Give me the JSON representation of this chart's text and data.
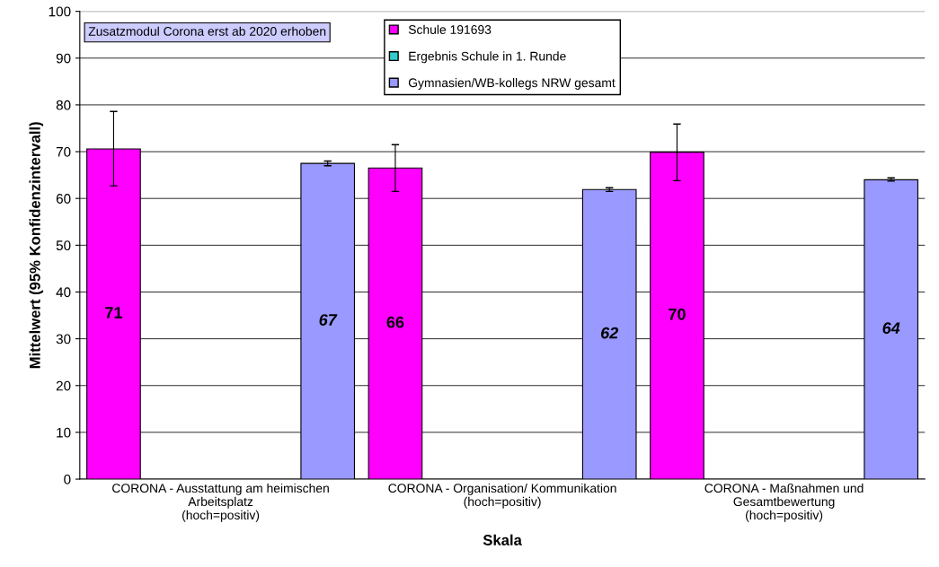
{
  "chart_data": {
    "type": "bar",
    "categories": [
      "CORONA - Ausstattung am heimischen\nArbeitsplatz\n(hoch=positiv)",
      "CORONA - Organisation/ Kommunikation\n(hoch=positiv)",
      "CORONA - Maßnahmen und\nGesamtbewertung\n(hoch=positiv)"
    ],
    "series": [
      {
        "name": "Schule 191693",
        "color": "#ff00ff",
        "values": [
          70.6,
          66.5,
          69.9
        ],
        "errors": [
          [
            62.7,
            78.6
          ],
          [
            61.5,
            71.5
          ],
          [
            63.8,
            75.9
          ]
        ],
        "value_labels": [
          "71",
          "66",
          "70"
        ]
      },
      {
        "name": "Ergebnis Schule in 1. Runde",
        "color": "#33cccc",
        "values": [
          null,
          null,
          null
        ]
      },
      {
        "name": "Gymnasien/WB-kollegs NRW gesamt",
        "color": "#9999ff",
        "values": [
          67.5,
          61.9,
          64.0
        ],
        "errors": [
          [
            67.0,
            68.0
          ],
          [
            61.5,
            62.3
          ],
          [
            63.7,
            64.4
          ]
        ],
        "value_labels": [
          "67",
          "62",
          "64"
        ]
      }
    ],
    "xlabel": "Skala",
    "ylabel": "Mittelwert (95% Konfidenzintervall)",
    "ylim": [
      0,
      100
    ],
    "yticks": [
      0,
      10,
      20,
      30,
      40,
      50,
      60,
      70,
      80,
      90,
      100
    ],
    "grid": "y",
    "legend": "top",
    "annotations": [
      "Zusatzmodul Corona erst ab 2020 erhoben"
    ]
  }
}
